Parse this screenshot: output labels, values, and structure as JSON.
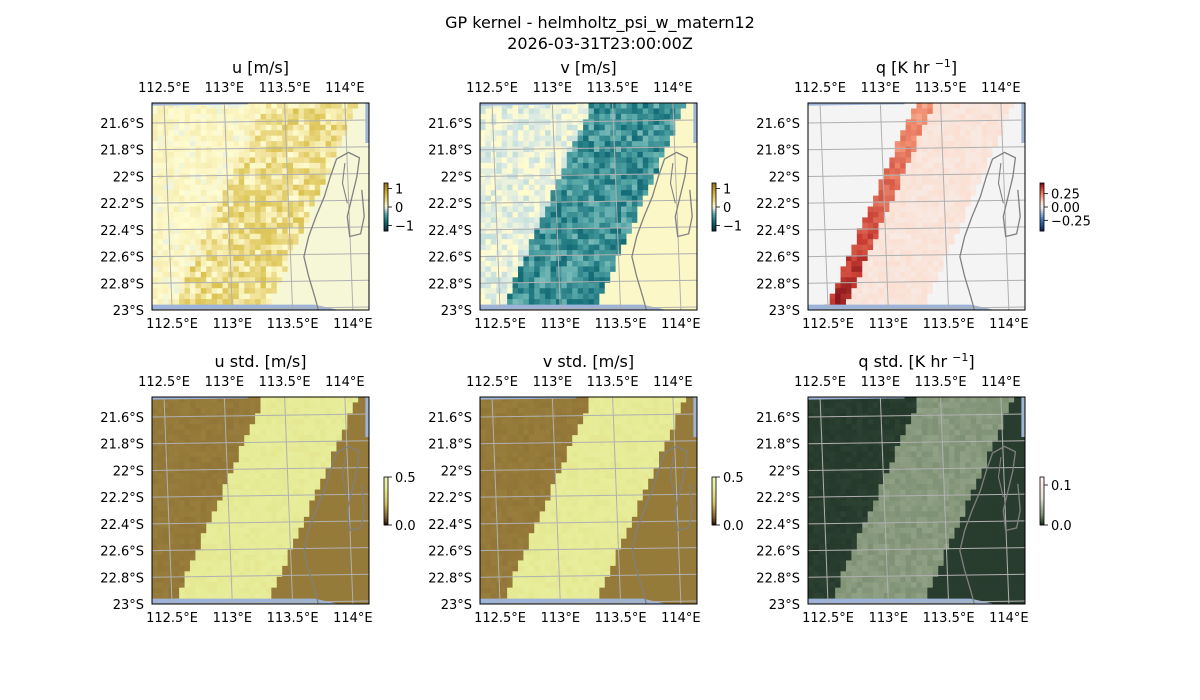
{
  "suptitle": "GP kernel - helmholtz_psi_w_matern12",
  "timestamp": "2026-03-31T23:00:00Z",
  "colors": {
    "background": "#ffffff",
    "ocean_strip": "#9db4d8",
    "grid": "#b0b0b0",
    "coastline": "#808080",
    "axis_frame": "#000000"
  },
  "chart_data": [
    {
      "type": "heatmap",
      "id": "u",
      "title": "u [m/s]",
      "xticks": [
        "112.5°E",
        "113°E",
        "113.5°E",
        "114°E"
      ],
      "yticks": [
        "21.6°S",
        "21.8°S",
        "22°S",
        "22.2°S",
        "22.4°S",
        "22.6°S",
        "22.8°S",
        "23°S"
      ],
      "xlim": [
        112.4,
        114.2
      ],
      "ylim": [
        -23.0,
        -21.45
      ],
      "colorbar": {
        "ticks": [
          "1",
          "0",
          "−1"
        ],
        "tick_values": [
          1,
          0,
          -1
        ],
        "range": [
          -1.3,
          1.3
        ],
        "colormap": "diverging-teal-yellow"
      },
      "field": {
        "model": "front",
        "value_left": 0.05,
        "value_right": 0.3,
        "noise": 0.3,
        "min": -0.1,
        "max": 1.0,
        "right_island_value": -0.02
      }
    },
    {
      "type": "heatmap",
      "id": "v",
      "title": "v [m/s]",
      "xticks": [
        "112.5°E",
        "113°E",
        "113.5°E",
        "114°E"
      ],
      "yticks": [
        "21.6°S",
        "21.8°S",
        "22°S",
        "22.2°S",
        "22.4°S",
        "22.6°S",
        "22.8°S",
        "23°S"
      ],
      "xlim": [
        112.4,
        114.2
      ],
      "ylim": [
        -23.0,
        -21.45
      ],
      "colorbar": {
        "ticks": [
          "1",
          "0",
          "−1"
        ],
        "tick_values": [
          1,
          0,
          -1
        ],
        "range": [
          -1.3,
          1.3
        ],
        "colormap": "diverging-teal-yellow"
      },
      "field": {
        "model": "front",
        "value_left": -0.05,
        "value_right": -0.55,
        "noise": 0.25,
        "min": -1.0,
        "max": 0.3,
        "right_island_value": 0.05
      }
    },
    {
      "type": "heatmap",
      "id": "q",
      "title": "q [K hr ",
      "title_superscript": "−1",
      "title_suffix": "]",
      "xticks": [
        "112.5°E",
        "113°E",
        "113.5°E",
        "114°E"
      ],
      "yticks": [
        "21.6°S",
        "21.8°S",
        "22°S",
        "22.2°S",
        "22.4°S",
        "22.6°S",
        "22.8°S",
        "23°S"
      ],
      "xlim": [
        112.4,
        114.2
      ],
      "ylim": [
        -23.0,
        -21.45
      ],
      "colorbar": {
        "ticks": [
          "0.25",
          "0.00",
          "−0.25"
        ],
        "tick_values": [
          0.25,
          0.0,
          -0.25
        ],
        "range": [
          -0.45,
          0.45
        ],
        "colormap": "diverging-blue-red"
      },
      "field": {
        "model": "edge",
        "value_left": 0.0,
        "value_edge": 0.4,
        "value_right": 0.06,
        "noise": 0.04,
        "min": 0.0,
        "max": 0.45
      }
    },
    {
      "type": "heatmap",
      "id": "u_std",
      "title": "u std. [m/s]",
      "xticks": [
        "112.5°E",
        "113°E",
        "113.5°E",
        "114°E"
      ],
      "yticks": [
        "21.6°S",
        "21.8°S",
        "22°S",
        "22.2°S",
        "22.4°S",
        "22.6°S",
        "22.8°S",
        "23°S"
      ],
      "xlim": [
        112.4,
        114.2
      ],
      "ylim": [
        -23.0,
        -21.45
      ],
      "colorbar": {
        "ticks": [
          "0.5",
          "0.0"
        ],
        "tick_values": [
          0.5,
          0.0
        ],
        "range": [
          0.0,
          0.5
        ],
        "colormap": "sequential-olive"
      },
      "field": {
        "model": "front",
        "value_left": 0.12,
        "value_right": 0.38,
        "noise": 0.02,
        "min": 0.0,
        "max": 0.5,
        "right_island_value": 0.12
      }
    },
    {
      "type": "heatmap",
      "id": "v_std",
      "title": "v std. [m/s]",
      "xticks": [
        "112.5°E",
        "113°E",
        "113.5°E",
        "114°E"
      ],
      "yticks": [
        "21.6°S",
        "21.8°S",
        "22°S",
        "22.2°S",
        "22.4°S",
        "22.6°S",
        "22.8°S",
        "23°S"
      ],
      "xlim": [
        112.4,
        114.2
      ],
      "ylim": [
        -23.0,
        -21.45
      ],
      "colorbar": {
        "ticks": [
          "0.5",
          "0.0"
        ],
        "tick_values": [
          0.5,
          0.0
        ],
        "range": [
          0.0,
          0.5
        ],
        "colormap": "sequential-olive"
      },
      "field": {
        "model": "front",
        "value_left": 0.12,
        "value_right": 0.38,
        "noise": 0.02,
        "min": 0.0,
        "max": 0.5,
        "right_island_value": 0.12
      }
    },
    {
      "type": "heatmap",
      "id": "q_std",
      "title": "q std. [K hr ",
      "title_superscript": "−1",
      "title_suffix": "]",
      "xticks": [
        "112.5°E",
        "113°E",
        "113.5°E",
        "114°E"
      ],
      "yticks": [
        "21.6°S",
        "21.8°S",
        "22°S",
        "22.2°S",
        "22.4°S",
        "22.6°S",
        "22.8°S",
        "23°S"
      ],
      "xlim": [
        112.4,
        114.2
      ],
      "ylim": [
        -23.0,
        -21.45
      ],
      "colorbar": {
        "ticks": [
          "0.1",
          "0.0"
        ],
        "tick_values": [
          0.1,
          0.0
        ],
        "range": [
          0.0,
          0.12
        ],
        "colormap": "sequential-grey-pink"
      },
      "field": {
        "model": "front",
        "value_left": 0.005,
        "value_right": 0.03,
        "noise": 0.004,
        "min": 0.0,
        "max": 0.12,
        "right_island_value": 0.005
      }
    }
  ]
}
